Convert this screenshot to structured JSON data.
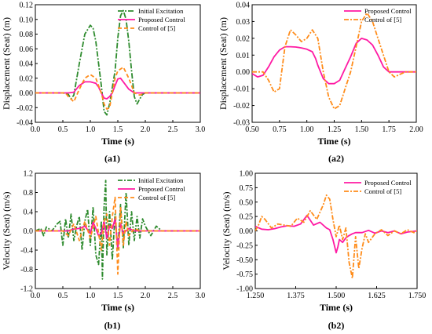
{
  "chart_data": [
    {
      "id": "a1",
      "type": "line",
      "caption": "(a1)",
      "xlabel": "Time (s)",
      "ylabel": "Displacement (Seat) (m)",
      "xlim": [
        0.0,
        3.0
      ],
      "ylim": [
        -0.04,
        0.12
      ],
      "xticks": [
        "0.0",
        "0.5",
        "1.0",
        "1.5",
        "2.0",
        "2.5",
        "3.0"
      ],
      "yticks": [
        "-0.04",
        "-0.02",
        "0.00",
        "0.02",
        "0.04",
        "0.06",
        "0.08",
        "0.10",
        "0.12"
      ],
      "legend_position": "top-right",
      "grid": false,
      "series": [
        {
          "name": "Initial Excitation",
          "color": "#2e8b2e",
          "dash": "7,2,2,2",
          "x": [
            0,
            0.5,
            0.6,
            0.65,
            0.7,
            0.8,
            0.9,
            1.0,
            1.05,
            1.1,
            1.2,
            1.25,
            1.3,
            1.35,
            1.45,
            1.5,
            1.55,
            1.6,
            1.65,
            1.7,
            1.75,
            1.8,
            1.85,
            1.9,
            1.95,
            2.0,
            3.0
          ],
          "y": [
            0,
            0,
            -0.002,
            -0.008,
            -0.003,
            0.04,
            0.08,
            0.092,
            0.088,
            0.07,
            0.01,
            -0.025,
            -0.03,
            -0.015,
            0.03,
            0.075,
            0.105,
            0.112,
            0.1,
            0.07,
            0.03,
            -0.005,
            -0.015,
            -0.008,
            -0.002,
            0,
            0
          ]
        },
        {
          "name": "Proposed Control",
          "color": "#ff1aa3",
          "dash": "",
          "x": [
            0,
            0.6,
            0.7,
            0.8,
            0.9,
            1.0,
            1.1,
            1.15,
            1.2,
            1.25,
            1.3,
            1.35,
            1.4,
            1.45,
            1.5,
            1.55,
            1.6,
            1.7,
            1.8,
            2.0,
            3.0
          ],
          "y": [
            0,
            0,
            0.001,
            0.01,
            0.015,
            0.015,
            0.013,
            0.008,
            0,
            -0.007,
            -0.008,
            -0.005,
            0,
            0.01,
            0.019,
            0.02,
            0.015,
            0.005,
            0,
            0,
            0
          ]
        },
        {
          "name": "Control of [5]",
          "color": "#ff8c1a",
          "dash": "5,3",
          "x": [
            0,
            0.55,
            0.6,
            0.7,
            0.8,
            0.9,
            1.0,
            1.1,
            1.2,
            1.25,
            1.3,
            1.35,
            1.4,
            1.45,
            1.5,
            1.6,
            1.7,
            1.8,
            1.9,
            2.0,
            3.0
          ],
          "y": [
            0,
            0,
            -0.005,
            -0.012,
            0.005,
            0.02,
            0.025,
            0.02,
            0,
            -0.015,
            -0.022,
            -0.02,
            0,
            0.02,
            0.03,
            0.035,
            0.02,
            0,
            -0.003,
            0,
            0
          ]
        }
      ]
    },
    {
      "id": "a2",
      "type": "line",
      "caption": "(a2)",
      "xlabel": "Time (s)",
      "ylabel": "Displacement (Seat) (m)",
      "xlim": [
        0.5,
        2.0
      ],
      "ylim": [
        -0.03,
        0.04
      ],
      "xticks": [
        "0.50",
        "0.75",
        "1.00",
        "1.25",
        "1.50",
        "1.75",
        "2.00"
      ],
      "yticks": [
        "-0.03",
        "-0.02",
        "-0.01",
        "0.00",
        "0.01",
        "0.02",
        "0.03",
        "0.04"
      ],
      "legend_position": "top-right",
      "grid": false,
      "series": [
        {
          "name": "Proposed Control",
          "color": "#ff1aa3",
          "dash": "",
          "x": [
            0.5,
            0.55,
            0.6,
            0.65,
            0.7,
            0.75,
            0.8,
            0.85,
            0.9,
            0.95,
            1.0,
            1.05,
            1.08,
            1.1,
            1.15,
            1.2,
            1.25,
            1.3,
            1.35,
            1.4,
            1.45,
            1.5,
            1.55,
            1.6,
            1.65,
            1.7,
            1.75,
            1.8,
            2.0
          ],
          "y": [
            -0.001,
            -0.003,
            -0.002,
            0.003,
            0.009,
            0.013,
            0.015,
            0.015,
            0.0148,
            0.0143,
            0.0135,
            0.012,
            0.008,
            0.004,
            -0.004,
            -0.007,
            -0.007,
            -0.005,
            0.002,
            0.009,
            0.017,
            0.02,
            0.019,
            0.016,
            0.01,
            0.003,
            0,
            0,
            0
          ]
        },
        {
          "name": "Control of [5]",
          "color": "#ff8c1a",
          "dash": "6,2,2,2",
          "x": [
            0.5,
            0.55,
            0.6,
            0.65,
            0.7,
            0.75,
            0.8,
            0.85,
            0.9,
            0.95,
            1.0,
            1.05,
            1.1,
            1.15,
            1.2,
            1.25,
            1.3,
            1.35,
            1.4,
            1.45,
            1.5,
            1.55,
            1.6,
            1.65,
            1.7,
            1.75,
            1.8,
            1.9,
            2.0
          ],
          "y": [
            0,
            0,
            0,
            -0.005,
            -0.012,
            -0.01,
            0.015,
            0.025,
            0.022,
            0.018,
            0.02,
            0.025,
            0.02,
            0,
            -0.015,
            -0.022,
            -0.02,
            -0.01,
            0,
            0.015,
            0.03,
            0.035,
            0.03,
            0.02,
            0.01,
            0,
            -0.003,
            0,
            0
          ]
        }
      ]
    },
    {
      "id": "b1",
      "type": "line",
      "caption": "(b1)",
      "xlabel": "Time (s)",
      "ylabel": "Velocity (Seat) (m/s)",
      "xlim": [
        0.0,
        3.0
      ],
      "ylim": [
        -1.2,
        1.2
      ],
      "xticks": [
        "0.0",
        "0.5",
        "1.0",
        "1.5",
        "2.0",
        "2.5",
        "3.0"
      ],
      "yticks": [
        "-1.2",
        "-0.8",
        "-0.4",
        "0.0",
        "0.4",
        "0.8",
        "1.2"
      ],
      "legend_position": "top-right",
      "grid": false,
      "series": [
        {
          "name": "Initial Excitation",
          "color": "#2e8b2e",
          "dash": "6,2,2,2",
          "x": [
            0,
            0.1,
            0.15,
            0.2,
            0.3,
            0.4,
            0.45,
            0.5,
            0.55,
            0.6,
            0.65,
            0.7,
            0.75,
            0.8,
            0.85,
            0.9,
            0.95,
            1.0,
            1.05,
            1.1,
            1.15,
            1.2,
            1.22,
            1.25,
            1.28,
            1.3,
            1.35,
            1.4,
            1.45,
            1.5,
            1.55,
            1.6,
            1.65,
            1.7,
            1.75,
            1.8,
            1.85,
            1.9,
            1.95,
            2.0,
            2.1,
            2.2,
            2.3,
            2.5,
            3.0
          ],
          "y": [
            0,
            0.05,
            -0.1,
            0.08,
            0,
            0.15,
            0.2,
            -0.3,
            0.25,
            -0.15,
            0.35,
            -0.2,
            0.1,
            0.3,
            -0.4,
            0.2,
            0.45,
            -0.3,
            0.5,
            -0.5,
            -0.7,
            0.2,
            -1.0,
            0.5,
            1.05,
            -0.5,
            0.4,
            -0.6,
            0.35,
            -0.4,
            0.55,
            -0.35,
            0.8,
            -0.3,
            0.4,
            -0.2,
            0.3,
            -0.15,
            0.25,
            0.1,
            -0.1,
            0.1,
            0,
            0,
            0
          ]
        },
        {
          "name": "Proposed Control",
          "color": "#ff1aa3",
          "dash": "",
          "x": [
            0,
            0.6,
            0.7,
            0.8,
            0.9,
            1.0,
            1.05,
            1.1,
            1.15,
            1.2,
            1.25,
            1.3,
            1.35,
            1.4,
            1.45,
            1.5,
            1.55,
            1.6,
            1.7,
            1.8,
            2.0,
            3.0
          ],
          "y": [
            0,
            0,
            0.04,
            0.05,
            0.1,
            -0.05,
            0.18,
            0.05,
            -0.1,
            -0.05,
            0.2,
            -0.15,
            0.1,
            0.05,
            0.25,
            -0.35,
            0.15,
            -0.05,
            0.05,
            0,
            0,
            0
          ]
        },
        {
          "name": "Control of [5]",
          "color": "#ff8c1a",
          "dash": "5,3",
          "x": [
            0,
            0.5,
            0.6,
            0.7,
            0.8,
            0.9,
            1.0,
            1.1,
            1.2,
            1.25,
            1.3,
            1.35,
            1.4,
            1.45,
            1.5,
            1.55,
            1.6,
            1.65,
            1.7,
            1.8,
            1.9,
            2.0,
            3.0
          ],
          "y": [
            0,
            0,
            -0.1,
            0.15,
            -0.2,
            0.2,
            -0.15,
            0.3,
            -0.4,
            0.2,
            0.35,
            -0.3,
            0.3,
            0.7,
            -0.9,
            0.5,
            -0.3,
            0.2,
            -0.1,
            0.05,
            0,
            0,
            0
          ]
        }
      ]
    },
    {
      "id": "b2",
      "type": "line",
      "caption": "(b2)",
      "xlabel": "Time (s)",
      "ylabel": "Velocity (Seat) (m/s)",
      "xlim": [
        1.25,
        1.75
      ],
      "ylim": [
        -1.0,
        1.0
      ],
      "xticks": [
        "1.250",
        "1.375",
        "1.500",
        "1.625",
        "1.750"
      ],
      "yticks": [
        "-1.00",
        "-0.75",
        "-0.50",
        "-0.25",
        "0.00",
        "0.25",
        "0.50",
        "0.75",
        "1.00"
      ],
      "legend_position": "top-right",
      "grid": false,
      "series": [
        {
          "name": "Proposed Control",
          "color": "#ff1aa3",
          "dash": "",
          "x": [
            1.25,
            1.27,
            1.29,
            1.31,
            1.33,
            1.35,
            1.37,
            1.39,
            1.41,
            1.43,
            1.45,
            1.47,
            1.48,
            1.49,
            1.5,
            1.505,
            1.51,
            1.52,
            1.53,
            1.54,
            1.55,
            1.56,
            1.58,
            1.6,
            1.62,
            1.64,
            1.66,
            1.68,
            1.7,
            1.72,
            1.75
          ],
          "y": [
            0.08,
            0.03,
            0.02,
            0.04,
            0.07,
            0.09,
            0.08,
            0.12,
            0.27,
            0.1,
            0.15,
            0.05,
            0.02,
            -0.15,
            -0.38,
            -0.28,
            -0.15,
            -0.2,
            -0.12,
            -0.08,
            -0.05,
            -0.03,
            -0.03,
            0.01,
            -0.04,
            0,
            -0.03,
            0,
            -0.05,
            -0.02,
            0
          ]
        },
        {
          "name": "Control of [5]",
          "color": "#ff8c1a",
          "dash": "6,2,2,2",
          "x": [
            1.25,
            1.26,
            1.27,
            1.28,
            1.3,
            1.32,
            1.34,
            1.36,
            1.38,
            1.4,
            1.42,
            1.44,
            1.46,
            1.47,
            1.48,
            1.49,
            1.5,
            1.51,
            1.52,
            1.53,
            1.54,
            1.55,
            1.56,
            1.57,
            1.58,
            1.59,
            1.6,
            1.62,
            1.64,
            1.66,
            1.68,
            1.7,
            1.72,
            1.74,
            1.75
          ],
          "y": [
            0,
            0.1,
            0.25,
            0.2,
            0.05,
            0.12,
            0.1,
            0.08,
            0.22,
            0.15,
            0.35,
            0.2,
            0.45,
            0.62,
            0.55,
            0.2,
            -0.1,
            0.1,
            -0.15,
            0.05,
            -0.55,
            -0.82,
            -0.1,
            -0.65,
            -0.3,
            -0.05,
            -0.2,
            -0.05,
            0.02,
            -0.08,
            0,
            -0.05,
            0.02,
            -0.03,
            0
          ]
        }
      ]
    }
  ]
}
